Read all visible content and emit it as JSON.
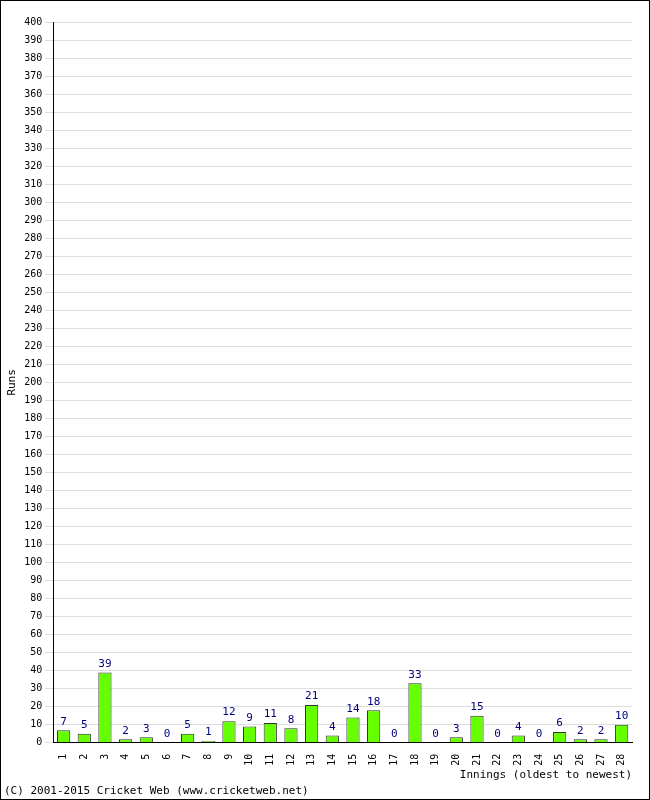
{
  "chart_data": {
    "type": "bar",
    "x_label": "Innings (oldest to newest)",
    "y_label": "Runs",
    "annotations": [
      "(C) 2001-2015 Cricket Web (www.cricketweb.net)"
    ],
    "categories": [
      "1",
      "2",
      "3",
      "4",
      "5",
      "6",
      "7",
      "8",
      "9",
      "10",
      "11",
      "12",
      "13",
      "14",
      "15",
      "16",
      "17",
      "18",
      "19",
      "20",
      "21",
      "22",
      "23",
      "24",
      "25",
      "26",
      "27",
      "28"
    ],
    "values": [
      7,
      5,
      39,
      2,
      3,
      0,
      5,
      1,
      12,
      9,
      11,
      8,
      21,
      4,
      14,
      18,
      0,
      33,
      0,
      3,
      15,
      0,
      4,
      0,
      6,
      2,
      2,
      10
    ],
    "color": "#66ff00",
    "ylim": [
      0,
      400
    ],
    "yticks": [
      0,
      10,
      20,
      30,
      40,
      50,
      60,
      70,
      80,
      90,
      100,
      110,
      120,
      130,
      140,
      150,
      160,
      170,
      180,
      190,
      200,
      210,
      220,
      230,
      240,
      250,
      260,
      270,
      280,
      290,
      300,
      310,
      320,
      330,
      340,
      350,
      360,
      370,
      380,
      390,
      400
    ],
    "grid": true,
    "data_labels": true
  }
}
